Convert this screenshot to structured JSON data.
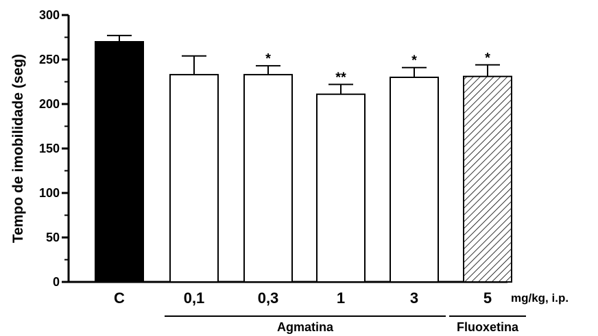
{
  "chart_data": {
    "type": "bar",
    "ylabel": "Tempo de imobilidade (seg)",
    "xlabel": "",
    "ylim": [
      0,
      300
    ],
    "yticks": [
      0,
      50,
      100,
      150,
      200,
      250,
      300
    ],
    "unit_label": "mg/kg, i.p.",
    "categories": [
      "C",
      "0,1",
      "0,3",
      "1",
      "3",
      "5"
    ],
    "values": [
      270,
      233,
      233,
      211,
      230,
      231
    ],
    "error": [
      7,
      21,
      10,
      11,
      11,
      13
    ],
    "significance": [
      "",
      "",
      "*",
      "**",
      "*",
      "*"
    ],
    "fills": [
      "solid-black",
      "white",
      "white",
      "white",
      "white",
      "hatched"
    ],
    "groups": [
      {
        "label": "Agmatina",
        "categories": [
          "0,1",
          "0,3",
          "1",
          "3"
        ]
      },
      {
        "label": "Fluoxetina",
        "categories": [
          "5"
        ]
      }
    ]
  }
}
